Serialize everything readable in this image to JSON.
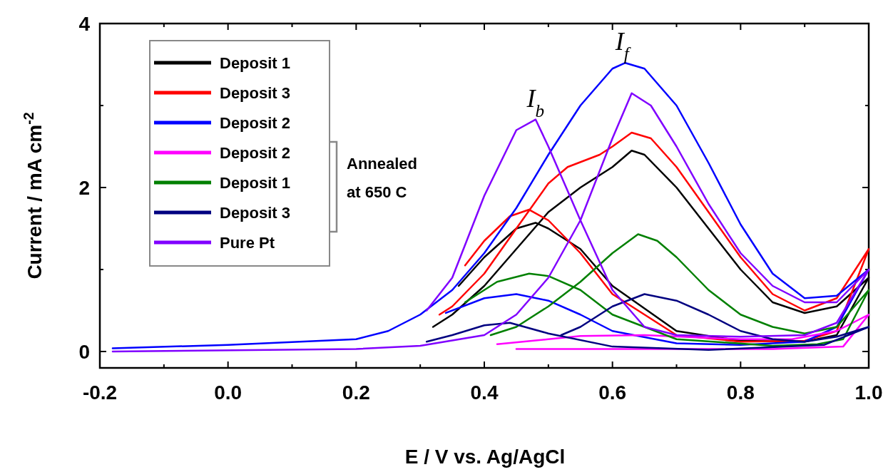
{
  "chart_data": {
    "type": "line",
    "xlabel": "E / V vs. Ag/AgCl",
    "ylabel": "Current / mA cm$^{-2}$",
    "xlim": [
      -0.2,
      1.0
    ],
    "ylim": [
      -0.2,
      4
    ],
    "xticks": [
      -0.2,
      {
        "value": -0.1,
        "label": null
      },
      "0.0",
      {
        "value": 0.1,
        "label": null
      },
      0.2,
      {
        "value": 0.3,
        "label": null
      },
      0.4,
      {
        "value": 0.5,
        "label": null
      },
      0.6,
      {
        "value": 0.7,
        "label": null
      },
      0.8,
      {
        "value": 0.9,
        "label": null
      },
      "1.0"
    ],
    "yticks": [
      0,
      {
        "value": 1,
        "label": null
      },
      2,
      {
        "value": 3,
        "label": null
      },
      4
    ],
    "legend": "top left",
    "grid": false,
    "marker": "none",
    "line_style": "solid",
    "annotations": [
      {
        "text": "I$_{b}$",
        "x": 0.48,
        "y": 2.83
      },
      {
        "text": "I$_{f}$",
        "x": 0.615,
        "y": 3.52
      },
      "Annealed at 650 C"
    ],
    "series": [
      {
        "name": "Deposit 1",
        "color": "#000000",
        "x": [
          0.32,
          0.35,
          0.4,
          0.45,
          0.5,
          0.55,
          0.6,
          0.63,
          0.65,
          0.7,
          0.75,
          0.8,
          0.85,
          0.9,
          0.95,
          1.0,
          0.95,
          0.9,
          0.8,
          0.7,
          0.6,
          0.55,
          0.5,
          0.48,
          0.45,
          0.4,
          0.36
        ],
        "values": [
          0.3,
          0.45,
          0.8,
          1.25,
          1.7,
          2.0,
          2.25,
          2.45,
          2.4,
          2.0,
          1.5,
          1.0,
          0.6,
          0.47,
          0.55,
          0.9,
          0.2,
          0.12,
          0.13,
          0.25,
          0.8,
          1.25,
          1.5,
          1.57,
          1.5,
          1.15,
          0.8
        ]
      },
      {
        "name": "Deposit 3",
        "color": "#ff0000",
        "x": [
          0.33,
          0.35,
          0.4,
          0.45,
          0.5,
          0.53,
          0.58,
          0.6,
          0.63,
          0.66,
          0.7,
          0.75,
          0.8,
          0.85,
          0.9,
          0.95,
          1.0,
          0.95,
          0.9,
          0.8,
          0.7,
          0.6,
          0.55,
          0.5,
          0.47,
          0.44,
          0.4,
          0.37
        ],
        "values": [
          0.45,
          0.55,
          0.95,
          1.5,
          2.05,
          2.25,
          2.4,
          2.5,
          2.67,
          2.6,
          2.25,
          1.7,
          1.15,
          0.7,
          0.5,
          0.65,
          1.25,
          0.25,
          0.13,
          0.12,
          0.2,
          0.7,
          1.2,
          1.6,
          1.73,
          1.65,
          1.35,
          1.05
        ]
      },
      {
        "name": "Deposit 2",
        "color": "#0000ff",
        "x": [
          -0.18,
          0.0,
          0.2,
          0.25,
          0.3,
          0.35,
          0.4,
          0.45,
          0.5,
          0.55,
          0.6,
          0.62,
          0.65,
          0.7,
          0.75,
          0.8,
          0.85,
          0.9,
          0.95,
          1.0,
          0.95,
          0.9,
          0.8,
          0.7,
          0.6,
          0.55,
          0.5,
          0.45,
          0.4,
          0.34
        ],
        "values": [
          0.04,
          0.08,
          0.15,
          0.25,
          0.45,
          0.75,
          1.2,
          1.75,
          2.4,
          3.0,
          3.45,
          3.52,
          3.45,
          3.0,
          2.3,
          1.55,
          0.95,
          0.65,
          0.68,
          1.0,
          0.3,
          0.12,
          0.08,
          0.1,
          0.25,
          0.45,
          0.62,
          0.7,
          0.65,
          0.47
        ]
      },
      {
        "name": "Deposit 2",
        "color": "#ff00ff",
        "x": [
          0.42,
          0.5,
          0.55,
          0.65,
          0.8,
          0.88,
          0.95,
          1.0,
          0.96,
          0.85,
          0.6,
          0.45
        ],
        "values": [
          0.09,
          0.15,
          0.19,
          0.2,
          0.15,
          0.15,
          0.25,
          0.45,
          0.06,
          0.03,
          0.03,
          0.03
        ]
      },
      {
        "name": "Deposit 1",
        "color": "#008000",
        "x": [
          0.41,
          0.45,
          0.5,
          0.55,
          0.6,
          0.64,
          0.67,
          0.7,
          0.75,
          0.8,
          0.85,
          0.9,
          0.95,
          1.0,
          0.96,
          0.92,
          0.85,
          0.7,
          0.6,
          0.55,
          0.5,
          0.47,
          0.42,
          0.37
        ],
        "values": [
          0.2,
          0.3,
          0.55,
          0.85,
          1.2,
          1.43,
          1.35,
          1.15,
          0.75,
          0.45,
          0.3,
          0.22,
          0.3,
          0.75,
          0.15,
          0.09,
          0.07,
          0.15,
          0.45,
          0.75,
          0.92,
          0.95,
          0.85,
          0.6
        ]
      },
      {
        "name": "Deposit 3",
        "color": "#000080",
        "x": [
          0.52,
          0.55,
          0.6,
          0.65,
          0.7,
          0.75,
          0.8,
          0.85,
          0.9,
          0.95,
          1.0,
          0.93,
          0.75,
          0.6,
          0.5,
          0.44,
          0.4,
          0.35,
          0.31
        ],
        "values": [
          0.2,
          0.3,
          0.55,
          0.7,
          0.62,
          0.45,
          0.25,
          0.15,
          0.12,
          0.18,
          0.3,
          0.08,
          0.02,
          0.06,
          0.22,
          0.35,
          0.32,
          0.2,
          0.12
        ]
      },
      {
        "name": "Pure Pt",
        "color": "#8000ff",
        "x": [
          -0.18,
          0.2,
          0.3,
          0.4,
          0.45,
          0.5,
          0.55,
          0.6,
          0.63,
          0.66,
          0.7,
          0.75,
          0.8,
          0.85,
          0.9,
          0.95,
          1.0,
          0.95,
          0.9,
          0.8,
          0.7,
          0.65,
          0.6,
          0.55,
          0.5,
          0.48,
          0.45,
          0.4,
          0.35,
          0.31
        ],
        "values": [
          0.0,
          0.03,
          0.07,
          0.2,
          0.45,
          0.9,
          1.6,
          2.6,
          3.15,
          3.0,
          2.5,
          1.8,
          1.2,
          0.8,
          0.6,
          0.6,
          1.0,
          0.35,
          0.2,
          0.18,
          0.2,
          0.3,
          0.75,
          1.6,
          2.5,
          2.83,
          2.7,
          1.9,
          0.9,
          0.5
        ]
      }
    ]
  }
}
